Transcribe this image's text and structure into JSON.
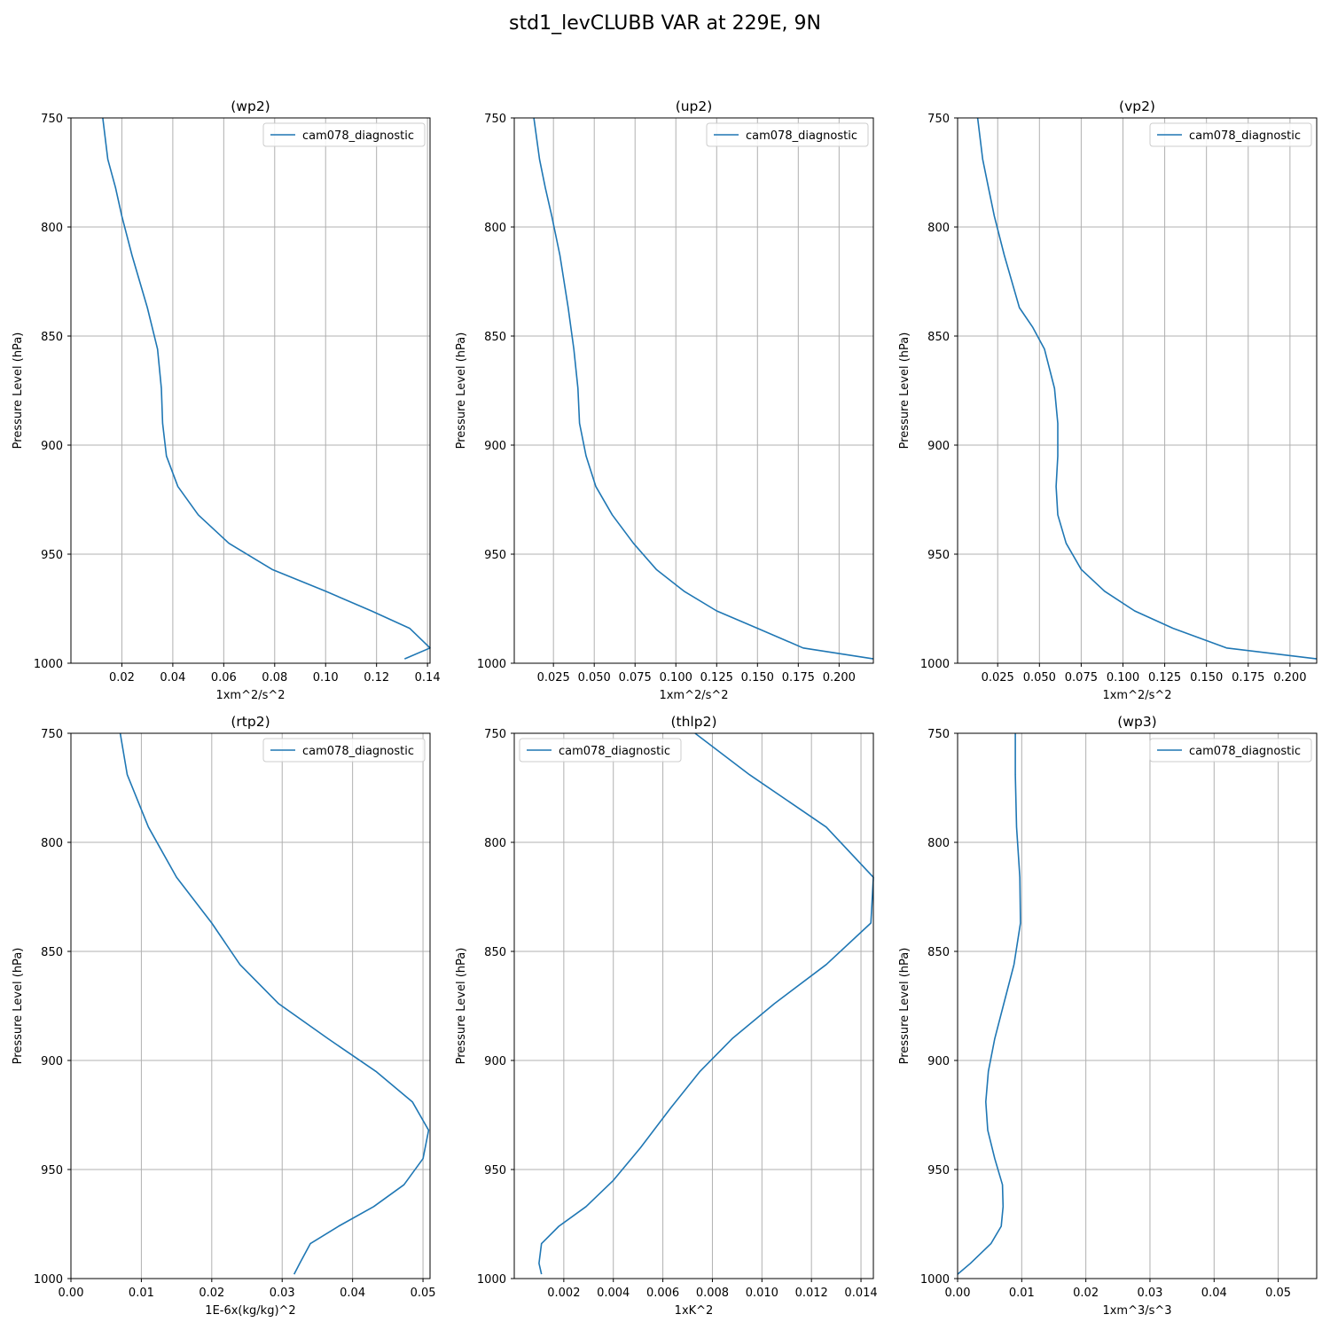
{
  "figure": {
    "title": "std1_levCLUBB VAR at 229E, 9N",
    "colors": {
      "line": "#1f77b4",
      "grid": "#b0b0b0",
      "axis": "#000000"
    }
  },
  "chart_data": [
    {
      "type": "line",
      "title": "(wp2)",
      "xlabel": "1xm^2/s^2",
      "ylabel": "Pressure Level (hPa)",
      "xlim": [
        0,
        0.141
      ],
      "ylim": [
        1000,
        750
      ],
      "xticks": [
        0.02,
        0.04,
        0.06,
        0.08,
        0.1,
        0.12,
        0.14
      ],
      "xtick_labels": [
        "0.02",
        "0.04",
        "0.06",
        "0.08",
        "0.10",
        "0.12",
        "0.14"
      ],
      "yticks": [
        750,
        800,
        850,
        900,
        950,
        1000
      ],
      "grid": true,
      "legend": "top-right",
      "series": [
        {
          "name": "cam078_diagnostic",
          "x": [
            0.0125,
            0.0145,
            0.0175,
            0.02,
            0.024,
            0.03,
            0.034,
            0.0355,
            0.036,
            0.0375,
            0.042,
            0.05,
            0.062,
            0.079,
            0.1,
            0.118,
            0.133,
            0.141,
            0.131
          ],
          "y": [
            750,
            769,
            782,
            795,
            813,
            837,
            856,
            874,
            890,
            905,
            919,
            932,
            945,
            957,
            967,
            976,
            984,
            993,
            998
          ]
        }
      ]
    },
    {
      "type": "line",
      "title": "(up2)",
      "xlabel": "1xm^2/s^2",
      "ylabel": "Pressure Level (hPa)",
      "xlim": [
        0.001,
        0.221
      ],
      "ylim": [
        1000,
        750
      ],
      "xticks": [
        0.025,
        0.05,
        0.075,
        0.1,
        0.125,
        0.15,
        0.175,
        0.2
      ],
      "xtick_labels": [
        "0.025",
        "0.050",
        "0.075",
        "0.100",
        "0.125",
        "0.150",
        "0.175",
        "0.200"
      ],
      "yticks": [
        750,
        800,
        850,
        900,
        950,
        1000
      ],
      "grid": true,
      "legend": "top-right",
      "series": [
        {
          "name": "cam078_diagnostic",
          "x": [
            0.013,
            0.0165,
            0.02,
            0.024,
            0.029,
            0.034,
            0.0375,
            0.04,
            0.041,
            0.045,
            0.051,
            0.061,
            0.074,
            0.088,
            0.105,
            0.125,
            0.15,
            0.178,
            0.221
          ],
          "y": [
            750,
            769,
            782,
            795,
            813,
            837,
            856,
            874,
            890,
            905,
            919,
            932,
            945,
            957,
            967,
            976,
            984,
            993,
            998
          ]
        }
      ]
    },
    {
      "type": "line",
      "title": "(vp2)",
      "xlabel": "1xm^2/s^2",
      "ylabel": "Pressure Level (hPa)",
      "xlim": [
        0.001,
        0.216
      ],
      "ylim": [
        1000,
        750
      ],
      "xticks": [
        0.025,
        0.05,
        0.075,
        0.1,
        0.125,
        0.15,
        0.175,
        0.2
      ],
      "xtick_labels": [
        "0.025",
        "0.050",
        "0.075",
        "0.100",
        "0.125",
        "0.150",
        "0.175",
        "0.200"
      ],
      "yticks": [
        750,
        800,
        850,
        900,
        950,
        1000
      ],
      "grid": true,
      "legend": "top-right",
      "series": [
        {
          "name": "cam078_diagnostic",
          "x": [
            0.013,
            0.016,
            0.0195,
            0.023,
            0.029,
            0.038,
            0.046,
            0.053,
            0.059,
            0.061,
            0.061,
            0.06,
            0.061,
            0.066,
            0.075,
            0.089,
            0.107,
            0.13,
            0.162,
            0.216
          ],
          "y": [
            750,
            769,
            782,
            795,
            813,
            837,
            846,
            856,
            874,
            890,
            905,
            919,
            932,
            945,
            957,
            967,
            976,
            984,
            993,
            998
          ]
        }
      ]
    },
    {
      "type": "line",
      "title": "(rtp2)",
      "xlabel": "1E-6x(kg/kg)^2",
      "ylabel": "Pressure Level (hPa)",
      "xlim": [
        0,
        0.051
      ],
      "ylim": [
        1000,
        750
      ],
      "xticks": [
        0.0,
        0.01,
        0.02,
        0.03,
        0.04,
        0.05
      ],
      "xtick_labels": [
        "0.00",
        "0.01",
        "0.02",
        "0.03",
        "0.04",
        "0.05"
      ],
      "yticks": [
        750,
        800,
        850,
        900,
        950,
        1000
      ],
      "grid": true,
      "legend": "top-right",
      "series": [
        {
          "name": "cam078_diagnostic",
          "x": [
            0.007,
            0.008,
            0.011,
            0.015,
            0.02,
            0.024,
            0.0295,
            0.0365,
            0.0433,
            0.0485,
            0.0508,
            0.05,
            0.0473,
            0.043,
            0.038,
            0.034,
            0.0325,
            0.0317
          ],
          "y": [
            750,
            769,
            793,
            816,
            837,
            856,
            874,
            890,
            905,
            919,
            932,
            945,
            957,
            967,
            976,
            984,
            993,
            998
          ]
        }
      ]
    },
    {
      "type": "line",
      "title": "(thlp2)",
      "xlabel": "1xK^2",
      "ylabel": "Pressure Level (hPa)",
      "xlim": [
        0,
        0.0145
      ],
      "ylim": [
        1000,
        750
      ],
      "xticks": [
        0.002,
        0.004,
        0.006,
        0.008,
        0.01,
        0.012,
        0.014
      ],
      "xtick_labels": [
        "0.002",
        "0.004",
        "0.006",
        "0.008",
        "0.010",
        "0.012",
        "0.014"
      ],
      "yticks": [
        750,
        800,
        850,
        900,
        950,
        1000
      ],
      "grid": true,
      "legend": "top-left",
      "series": [
        {
          "name": "cam078_diagnostic",
          "x": [
            0.0073,
            0.0095,
            0.0126,
            0.0145,
            0.0144,
            0.0126,
            0.0105,
            0.0088,
            0.0075,
            0.0063,
            0.0051,
            0.004,
            0.0029,
            0.0018,
            0.0011,
            0.001,
            0.0011
          ],
          "y": [
            750,
            769,
            793,
            816,
            837,
            856,
            874,
            890,
            905,
            922,
            940,
            955,
            967,
            976,
            984,
            993,
            998
          ]
        }
      ]
    },
    {
      "type": "line",
      "title": "(wp3)",
      "xlabel": "1xm^3/s^3",
      "ylabel": "Pressure Level (hPa)",
      "xlim": [
        0,
        0.056
      ],
      "ylim": [
        1000,
        750
      ],
      "xticks": [
        0.0,
        0.01,
        0.02,
        0.03,
        0.04,
        0.05
      ],
      "xtick_labels": [
        "0.00",
        "0.01",
        "0.02",
        "0.03",
        "0.04",
        "0.05"
      ],
      "yticks": [
        750,
        800,
        850,
        900,
        950,
        1000
      ],
      "grid": true,
      "legend": "top-right",
      "series": [
        {
          "name": "cam078_diagnostic",
          "x": [
            0.009,
            0.009,
            0.0092,
            0.0097,
            0.0098,
            0.0088,
            0.0072,
            0.0058,
            0.0048,
            0.0044,
            0.0047,
            0.0058,
            0.007,
            0.0071,
            0.0068,
            0.0052,
            0.002,
            0.0
          ],
          "y": [
            750,
            769,
            793,
            816,
            837,
            856,
            874,
            890,
            905,
            919,
            932,
            945,
            957,
            967,
            976,
            984,
            993,
            998
          ]
        }
      ]
    }
  ]
}
